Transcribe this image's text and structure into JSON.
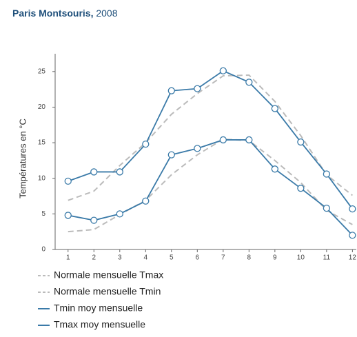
{
  "chart_data": {
    "type": "line",
    "title": "Paris Montsouris,",
    "title_year": "2008",
    "y_label": "Températures en °C",
    "x": [
      1,
      2,
      3,
      4,
      5,
      6,
      7,
      8,
      9,
      10,
      11,
      12
    ],
    "xlim": [
      0.5,
      12.15
    ],
    "xticks": [
      1,
      2,
      3,
      4,
      5,
      6,
      7,
      8,
      9,
      10,
      11,
      12
    ],
    "ylim": [
      0,
      27.5
    ],
    "yticks": [
      0,
      5,
      10,
      15,
      20,
      25
    ],
    "series": [
      {
        "name": "Normale mensuelle Tmax",
        "color": "#bbbbbb",
        "dashed": true,
        "values": [
          6.9,
          8.2,
          11.8,
          15.0,
          19.0,
          21.9,
          24.4,
          24.5,
          20.8,
          16.0,
          10.5,
          7.6
        ]
      },
      {
        "name": "Normale mensuelle Tmin",
        "color": "#bbbbbb",
        "dashed": true,
        "values": [
          2.5,
          2.8,
          4.9,
          6.9,
          10.5,
          13.3,
          15.5,
          15.3,
          12.5,
          9.4,
          5.5,
          3.5
        ]
      },
      {
        "name": "Tmin moy mensuelle",
        "color": "#3a7aa8",
        "dashed": false,
        "values": [
          4.8,
          4.1,
          5.0,
          6.8,
          13.3,
          14.2,
          15.4,
          15.4,
          11.3,
          8.6,
          5.8,
          2.0
        ]
      },
      {
        "name": "Tmax moy mensuelle",
        "color": "#3a7aa8",
        "dashed": false,
        "values": [
          9.6,
          10.9,
          10.9,
          14.8,
          22.3,
          22.6,
          25.1,
          23.5,
          19.8,
          15.1,
          10.6,
          5.7
        ]
      }
    ]
  }
}
